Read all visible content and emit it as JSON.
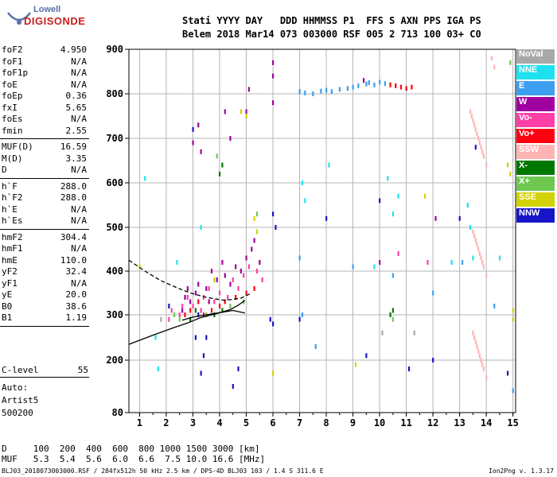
{
  "logo": {
    "top": "Lowell",
    "bottom": "DIGISONDE"
  },
  "header": {
    "line1": "Stati YYYY DAY   DDD HHMMSS P1  FFS S AXN PPS IGA PS",
    "line2": "Belem 2018 Mar14 073 003000 RSF 005 2 713 100 03+ C0"
  },
  "params_group1": [
    {
      "name": "foF2",
      "value": "4.950"
    },
    {
      "name": "foF1",
      "value": "N/A"
    },
    {
      "name": "foF1p",
      "value": "N/A"
    },
    {
      "name": "foE",
      "value": "N/A"
    },
    {
      "name": "foEp",
      "value": "0.36"
    },
    {
      "name": "fxI",
      "value": "5.65"
    },
    {
      "name": "foEs",
      "value": "N/A"
    },
    {
      "name": "fmin",
      "value": "2.55"
    }
  ],
  "params_group2": [
    {
      "name": "MUF(D)",
      "value": "16.59"
    },
    {
      "name": "M(D)",
      "value": "3.35"
    },
    {
      "name": "D",
      "value": "N/A"
    }
  ],
  "params_group3": [
    {
      "name": "h`F",
      "value": "288.0"
    },
    {
      "name": "h`F2",
      "value": "288.0"
    },
    {
      "name": "h`E",
      "value": "N/A"
    },
    {
      "name": "h`Es",
      "value": "N/A"
    }
  ],
  "params_group4": [
    {
      "name": "hmF2",
      "value": "304.4"
    },
    {
      "name": "hmF1",
      "value": "N/A"
    },
    {
      "name": "hmE",
      "value": "110.0"
    },
    {
      "name": "yF2",
      "value": "32.4"
    },
    {
      "name": "yF1",
      "value": "N/A"
    },
    {
      "name": "yE",
      "value": "20.0"
    },
    {
      "name": "B0",
      "value": "38.6"
    },
    {
      "name": "B1",
      "value": "1.19"
    }
  ],
  "clevel": {
    "name": "C-level",
    "value": "55"
  },
  "auto": {
    "l1": "Auto:",
    "l2": "Artist5",
    "l3": "500200"
  },
  "dmuf": {
    "row1": "D     100  200  400  600  800 1000 1500 3000 [km]",
    "row2": "MUF   5.3  5.4  5.6  6.0  6.6  7.5 10.0 16.6 [MHz]"
  },
  "footer": {
    "left": "BLJ03_2018073003000.RSF / 284fx512h 50 kHz 2.5 km / DPS-4D BLJ03 103 / 1.4 S 311.6 E",
    "right": "Ion2Png v. 1.3.17"
  },
  "legend": [
    {
      "label": "NoVal",
      "color": "#a8a8a8"
    },
    {
      "label": "NNE",
      "color": "#1ee1f0"
    },
    {
      "label": "E",
      "color": "#3c9ff0"
    },
    {
      "label": "W",
      "color": "#a0009f"
    },
    {
      "label": "Vo-",
      "color": "#ff3fa8"
    },
    {
      "label": "Vo+",
      "color": "#ff0010"
    },
    {
      "label": "SSW",
      "color": "#ffb4b4"
    },
    {
      "label": "X-",
      "color": "#007800"
    },
    {
      "label": "X+",
      "color": "#6ec850"
    },
    {
      "label": "SSE",
      "color": "#d2d200"
    },
    {
      "label": "NNW",
      "color": "#1616c8"
    }
  ],
  "chart_data": {
    "type": "scatter",
    "xlabel": "",
    "ylabel": "",
    "xlim": [
      0.6,
      15.1
    ],
    "ylim": [
      80,
      900
    ],
    "x_ticks": [
      "1",
      "2",
      "3",
      "4",
      "5",
      "6",
      "7",
      "8",
      "9",
      "10",
      "11",
      "12",
      "13",
      "14",
      "15"
    ],
    "y_ticks": [
      "80",
      "200",
      "300",
      "400",
      "500",
      "600",
      "700",
      "800",
      "900"
    ],
    "grid": true,
    "series": [
      {
        "name": "W",
        "color": "#a0009f",
        "points": [
          [
            2.6,
            310
          ],
          [
            2.7,
            340
          ],
          [
            2.8,
            360
          ],
          [
            2.9,
            330
          ],
          [
            3.1,
            350
          ],
          [
            3.2,
            370
          ],
          [
            3.5,
            360
          ],
          [
            3.6,
            330
          ],
          [
            3.7,
            400
          ],
          [
            3.9,
            380
          ],
          [
            4.1,
            420
          ],
          [
            4.2,
            390
          ],
          [
            4.4,
            370
          ],
          [
            4.6,
            410
          ],
          [
            4.8,
            400
          ],
          [
            5.0,
            430
          ],
          [
            5.2,
            450
          ],
          [
            5.3,
            470
          ],
          [
            5.5,
            420
          ],
          [
            6.0,
            870
          ],
          [
            6.0,
            840
          ],
          [
            6.0,
            780
          ],
          [
            3.2,
            730
          ],
          [
            3.3,
            670
          ],
          [
            3.0,
            690
          ],
          [
            4.2,
            760
          ],
          [
            4.4,
            700
          ],
          [
            5.0,
            760
          ],
          [
            5.1,
            810
          ],
          [
            9.4,
            830
          ],
          [
            10.0,
            420
          ],
          [
            12.1,
            520
          ]
        ]
      },
      {
        "name": "Vo-",
        "color": "#ff3fa8",
        "points": [
          [
            2.5,
            300
          ],
          [
            2.6,
            320
          ],
          [
            2.8,
            340
          ],
          [
            3.0,
            320
          ],
          [
            3.3,
            310
          ],
          [
            3.4,
            340
          ],
          [
            3.6,
            360
          ],
          [
            3.8,
            330
          ],
          [
            4.0,
            350
          ],
          [
            4.3,
            340
          ],
          [
            4.5,
            380
          ],
          [
            4.7,
            360
          ],
          [
            4.9,
            390
          ],
          [
            5.1,
            410
          ],
          [
            5.4,
            400
          ],
          [
            5.6,
            380
          ],
          [
            10.7,
            440
          ],
          [
            11.8,
            420
          ],
          [
            2.2,
            310
          ],
          [
            2.1,
            290
          ]
        ]
      },
      {
        "name": "Vo+",
        "color": "#ff0010",
        "points": [
          [
            2.7,
            300
          ],
          [
            2.9,
            310
          ],
          [
            3.2,
            330
          ],
          [
            3.4,
            300
          ],
          [
            3.7,
            310
          ],
          [
            4.0,
            320
          ],
          [
            4.2,
            330
          ],
          [
            4.6,
            340
          ],
          [
            5.0,
            350
          ],
          [
            5.3,
            360
          ],
          [
            10.4,
            820
          ],
          [
            10.6,
            818
          ],
          [
            10.8,
            815
          ],
          [
            11.0,
            812
          ],
          [
            11.2,
            815
          ]
        ]
      },
      {
        "name": "E",
        "color": "#3c9ff0",
        "points": [
          [
            7.0,
            805
          ],
          [
            7.2,
            802
          ],
          [
            7.5,
            800
          ],
          [
            7.8,
            806
          ],
          [
            8.0,
            808
          ],
          [
            8.2,
            805
          ],
          [
            8.5,
            810
          ],
          [
            8.8,
            812
          ],
          [
            9.0,
            815
          ],
          [
            9.2,
            818
          ],
          [
            9.5,
            822
          ],
          [
            9.6,
            825
          ],
          [
            9.8,
            820
          ],
          [
            10.0,
            826
          ],
          [
            10.2,
            823
          ],
          [
            7.0,
            430
          ],
          [
            7.1,
            300
          ],
          [
            7.6,
            230
          ],
          [
            9.0,
            410
          ],
          [
            10.5,
            390
          ],
          [
            12.0,
            350
          ],
          [
            13.1,
            420
          ],
          [
            14.3,
            320
          ],
          [
            15.0,
            130
          ]
        ]
      },
      {
        "name": "NNE",
        "color": "#1ee1f0",
        "points": [
          [
            1.2,
            610
          ],
          [
            1.6,
            250
          ],
          [
            1.7,
            180
          ],
          [
            2.4,
            420
          ],
          [
            7.1,
            600
          ],
          [
            7.2,
            560
          ],
          [
            8.1,
            640
          ],
          [
            10.3,
            610
          ],
          [
            10.7,
            570
          ],
          [
            10.5,
            530
          ],
          [
            12.7,
            420
          ],
          [
            13.3,
            550
          ],
          [
            13.4,
            500
          ],
          [
            13.5,
            430
          ],
          [
            14.5,
            430
          ],
          [
            3.3,
            500
          ],
          [
            9.8,
            410
          ]
        ]
      },
      {
        "name": "SSW",
        "color": "#ffb4b4",
        "points": [
          [
            13.4,
            760
          ],
          [
            13.5,
            740
          ],
          [
            13.6,
            720
          ],
          [
            13.7,
            700
          ],
          [
            13.8,
            680
          ],
          [
            13.9,
            660
          ],
          [
            14.0,
            640
          ],
          [
            13.45,
            750
          ],
          [
            13.55,
            730
          ],
          [
            13.65,
            710
          ],
          [
            13.75,
            690
          ],
          [
            13.85,
            670
          ],
          [
            13.5,
            490
          ],
          [
            13.6,
            470
          ],
          [
            13.7,
            450
          ],
          [
            13.8,
            430
          ],
          [
            13.9,
            410
          ],
          [
            14.0,
            390
          ],
          [
            13.55,
            480
          ],
          [
            13.65,
            460
          ],
          [
            13.75,
            440
          ],
          [
            13.85,
            420
          ],
          [
            13.5,
            260
          ],
          [
            13.6,
            240
          ],
          [
            13.7,
            220
          ],
          [
            13.8,
            200
          ],
          [
            13.9,
            180
          ],
          [
            14.0,
            160
          ],
          [
            13.55,
            250
          ],
          [
            13.65,
            230
          ],
          [
            13.75,
            210
          ],
          [
            13.85,
            190
          ],
          [
            14.2,
            880
          ],
          [
            14.3,
            860
          ]
        ]
      },
      {
        "name": "X-",
        "color": "#007800",
        "points": [
          [
            2.9,
            290
          ],
          [
            3.1,
            310
          ],
          [
            3.8,
            300
          ],
          [
            4.1,
            310
          ],
          [
            10.4,
            300
          ],
          [
            10.5,
            310
          ],
          [
            4.0,
            620
          ],
          [
            4.1,
            640
          ]
        ]
      },
      {
        "name": "X+",
        "color": "#6ec850",
        "points": [
          [
            2.3,
            300
          ],
          [
            2.5,
            290
          ],
          [
            3.5,
            300
          ],
          [
            4.4,
            320
          ],
          [
            4.9,
            330
          ],
          [
            5.4,
            530
          ],
          [
            3.9,
            660
          ],
          [
            10.5,
            290
          ],
          [
            14.9,
            870
          ]
        ]
      },
      {
        "name": "SSE",
        "color": "#d2d200",
        "points": [
          [
            1.0,
            410
          ],
          [
            4.8,
            760
          ],
          [
            5.0,
            750
          ],
          [
            5.4,
            490
          ],
          [
            5.3,
            520
          ],
          [
            6.0,
            170
          ],
          [
            9.1,
            190
          ],
          [
            11.7,
            570
          ],
          [
            14.8,
            640
          ],
          [
            14.9,
            620
          ],
          [
            15.0,
            310
          ],
          [
            15.0,
            290
          ],
          [
            3.8,
            380
          ]
        ]
      },
      {
        "name": "NNW",
        "color": "#1616c8",
        "points": [
          [
            3.0,
            720
          ],
          [
            3.1,
            250
          ],
          [
            3.2,
            300
          ],
          [
            3.3,
            170
          ],
          [
            3.4,
            210
          ],
          [
            3.5,
            250
          ],
          [
            4.5,
            140
          ],
          [
            4.7,
            180
          ],
          [
            6.0,
            530
          ],
          [
            6.1,
            500
          ],
          [
            6.0,
            280
          ],
          [
            7.0,
            290
          ],
          [
            8.0,
            520
          ],
          [
            9.5,
            210
          ],
          [
            10.0,
            560
          ],
          [
            13.0,
            520
          ],
          [
            13.6,
            680
          ],
          [
            14.8,
            170
          ],
          [
            11.1,
            180
          ],
          [
            2.1,
            320
          ],
          [
            5.9,
            290
          ],
          [
            12.0,
            200
          ]
        ]
      },
      {
        "name": "NoVal",
        "color": "#a8a8a8",
        "points": [
          [
            1.8,
            290
          ],
          [
            10.1,
            260
          ],
          [
            11.3,
            260
          ]
        ]
      }
    ],
    "lines": [
      {
        "name": "profile",
        "color": "#000",
        "style": "solid",
        "points": [
          [
            0.6,
            235
          ],
          [
            1.5,
            255
          ],
          [
            2.2,
            270
          ],
          [
            2.8,
            282
          ],
          [
            3.3,
            294
          ],
          [
            3.9,
            303
          ],
          [
            4.4,
            312
          ],
          [
            4.7,
            322
          ],
          [
            4.95,
            333
          ]
        ]
      },
      {
        "name": "F-trace",
        "color": "#000",
        "style": "solid",
        "points": [
          [
            2.6,
            288
          ],
          [
            3.0,
            295
          ],
          [
            3.5,
            300
          ],
          [
            4.0,
            305
          ],
          [
            4.5,
            310
          ],
          [
            4.95,
            304
          ]
        ]
      },
      {
        "name": "model",
        "color": "#000",
        "style": "dashed",
        "points": [
          [
            0.6,
            425
          ],
          [
            1.2,
            400
          ],
          [
            1.8,
            378
          ],
          [
            2.4,
            362
          ],
          [
            2.9,
            350
          ],
          [
            3.5,
            340
          ],
          [
            4.2,
            333
          ],
          [
            4.8,
            338
          ],
          [
            5.2,
            350
          ]
        ]
      }
    ]
  }
}
